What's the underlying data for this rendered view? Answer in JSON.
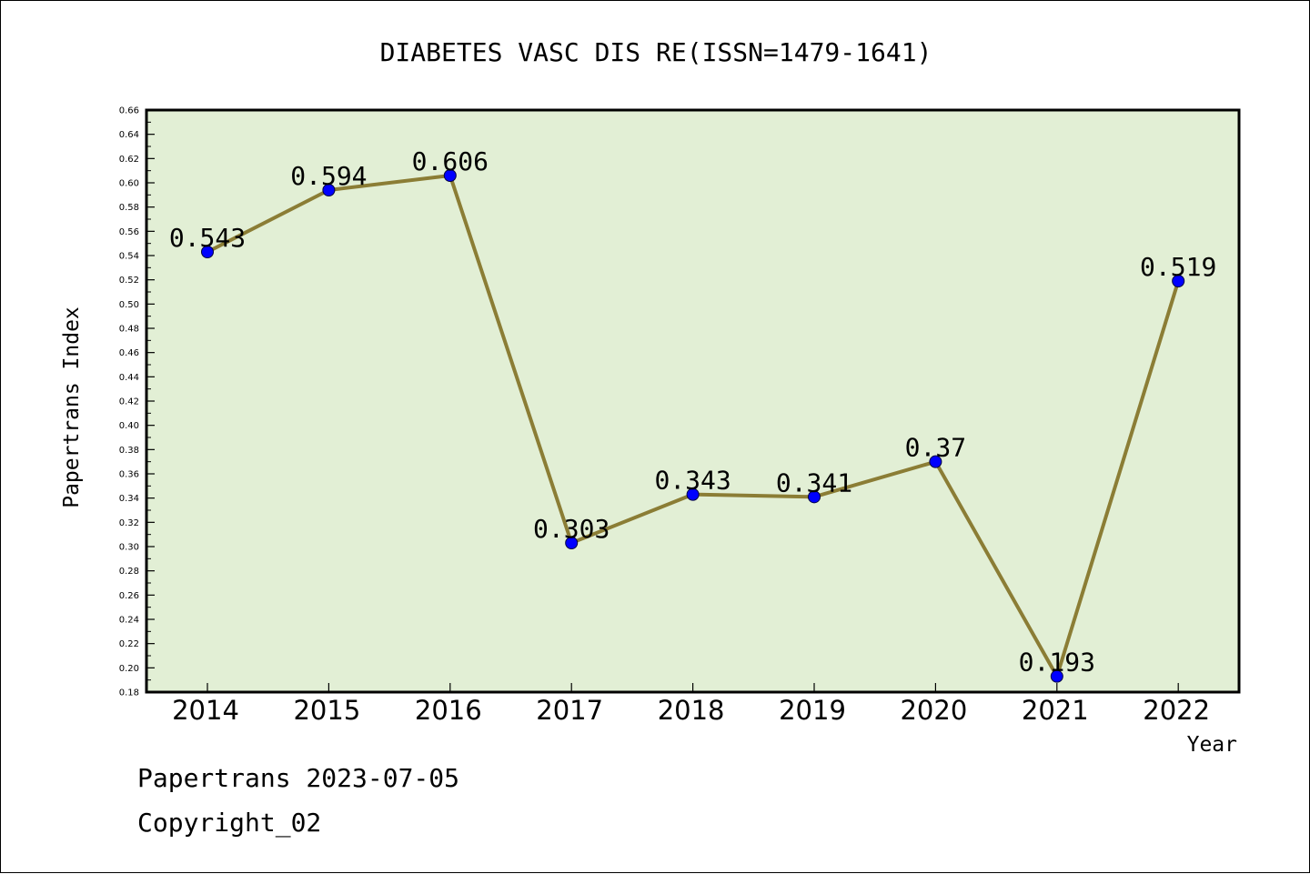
{
  "chart_data": {
    "type": "line",
    "title": "DIABETES VASC DIS RE(ISSN=1479-1641)",
    "xlabel": "Year",
    "ylabel": "Papertrans Index",
    "categories": [
      "2014",
      "2015",
      "2016",
      "2017",
      "2018",
      "2019",
      "2020",
      "2021",
      "2022"
    ],
    "series": [
      {
        "values": [
          0.543,
          0.594,
          0.606,
          0.303,
          0.343,
          0.341,
          0.37,
          0.193,
          0.519
        ],
        "labels": [
          "0.543",
          "0.594",
          "0.606",
          "0.303",
          "0.343",
          "0.341",
          "0.37",
          "0.193",
          "0.519"
        ],
        "line_color": "#8b7d35",
        "marker_color": "#0000ff"
      }
    ],
    "ylim": [
      0.18,
      0.66
    ],
    "yticks": [
      "0.18",
      "0.20",
      "0.22",
      "0.24",
      "0.26",
      "0.28",
      "0.30",
      "0.32",
      "0.34",
      "0.36",
      "0.38",
      "0.40",
      "0.42",
      "0.44",
      "0.46",
      "0.48",
      "0.50",
      "0.52",
      "0.54",
      "0.56",
      "0.58",
      "0.60",
      "0.62",
      "0.64",
      "0.66"
    ],
    "grid": false,
    "plot_background": "#e2efd5"
  },
  "footer": {
    "line1": "Papertrans 2023-07-05",
    "line2": "Copyright_02"
  }
}
